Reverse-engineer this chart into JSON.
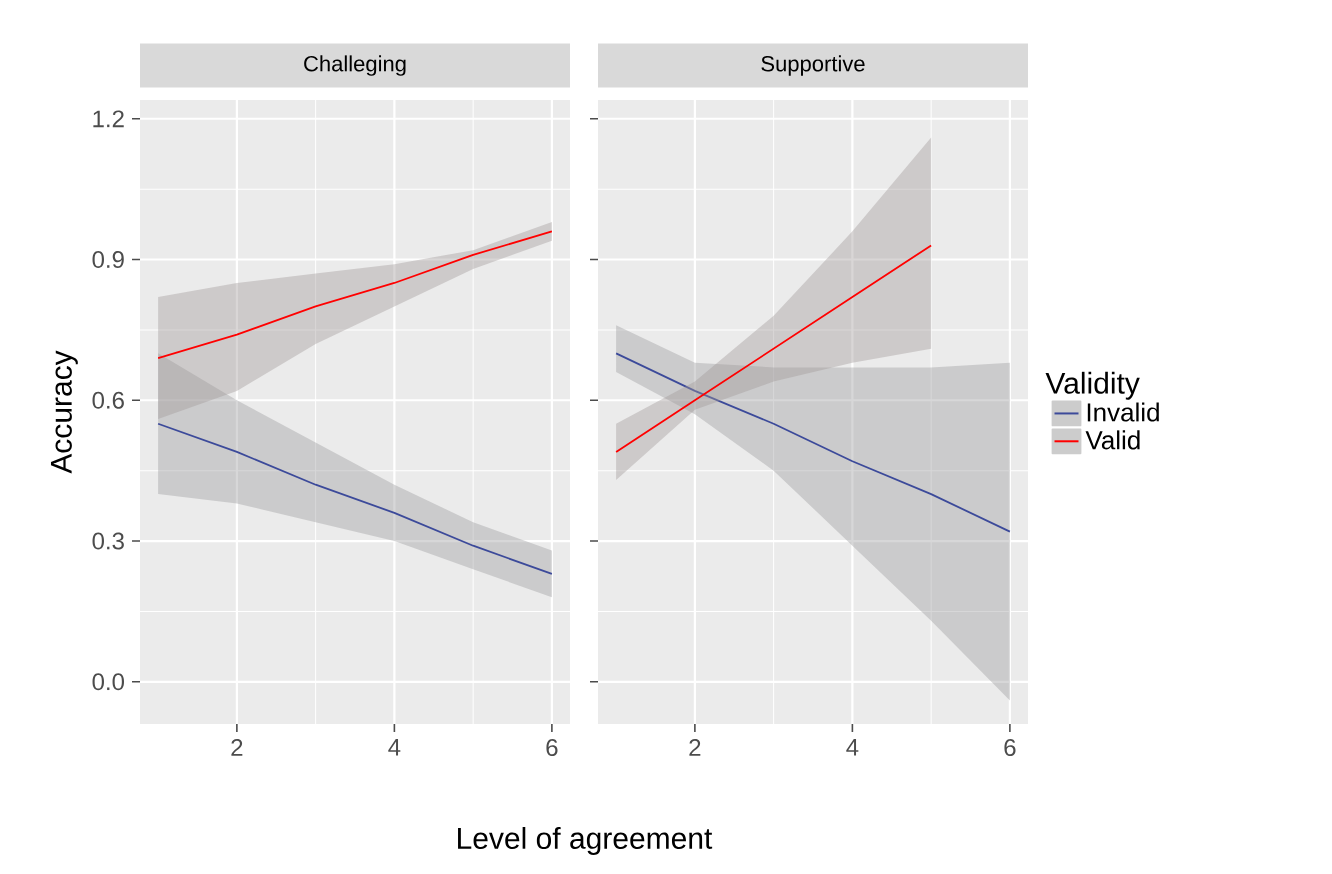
{
  "chart_data": [
    {
      "type": "line",
      "title": "Challeging",
      "xlabel": "Level of agreement",
      "ylabel": "Accuracy",
      "xlim": [
        0.77,
        6.23
      ],
      "ylim": [
        -0.09,
        1.24
      ],
      "xticks": [
        2,
        4,
        6
      ],
      "yticks": [
        {
          "value": 0,
          "label": "0.0"
        },
        0.3,
        0.6,
        0.9,
        1.2
      ],
      "grid": true,
      "series": [
        {
          "color": "#3c4a9a",
          "x": [
            1,
            2,
            3,
            4,
            5,
            6
          ],
          "values": [
            0.55,
            0.49,
            0.42,
            0.36,
            0.29,
            0.23
          ],
          "lower": [
            0.4,
            0.38,
            0.34,
            0.3,
            0.24,
            0.18
          ],
          "upper": [
            0.7,
            0.6,
            0.51,
            0.42,
            0.34,
            0.28
          ]
        },
        {
          "color": "#ff0000",
          "x": [
            1,
            2,
            3,
            4,
            5,
            6
          ],
          "values": [
            0.69,
            0.74,
            0.8,
            0.85,
            0.91,
            0.96
          ],
          "lower": [
            0.56,
            0.62,
            0.72,
            0.8,
            0.88,
            0.94
          ],
          "upper": [
            0.82,
            0.85,
            0.87,
            0.89,
            0.92,
            0.98
          ]
        }
      ]
    },
    {
      "type": "line",
      "title": "Supportive",
      "legend_title": "Validity",
      "legend": "right",
      "tick_labels": "x",
      "xlim": [
        0.77,
        6.23
      ],
      "ylim": [
        -0.09,
        1.24
      ],
      "xticks": [
        2,
        4,
        6
      ],
      "yticks": [
        0,
        0.3,
        0.6,
        0.9,
        1.2
      ],
      "grid": true,
      "series": [
        {
          "name": "Invalid",
          "color": "#3c4a9a",
          "x": [
            1,
            2,
            3,
            4,
            5,
            6
          ],
          "values": [
            0.7,
            0.62,
            0.55,
            0.47,
            0.4,
            0.32
          ],
          "lower": [
            0.66,
            0.57,
            0.45,
            0.29,
            0.13,
            -0.04
          ],
          "upper": [
            0.76,
            0.68,
            0.67,
            0.67,
            0.67,
            0.68
          ]
        },
        {
          "name": "Valid",
          "color": "#ff0000",
          "x": [
            1,
            2,
            3,
            4,
            5
          ],
          "values": [
            0.49,
            0.6,
            0.71,
            0.82,
            0.93
          ],
          "lower": [
            0.43,
            0.58,
            0.64,
            0.68,
            0.71
          ],
          "upper": [
            0.55,
            0.64,
            0.78,
            0.96,
            1.16
          ]
        }
      ]
    }
  ]
}
